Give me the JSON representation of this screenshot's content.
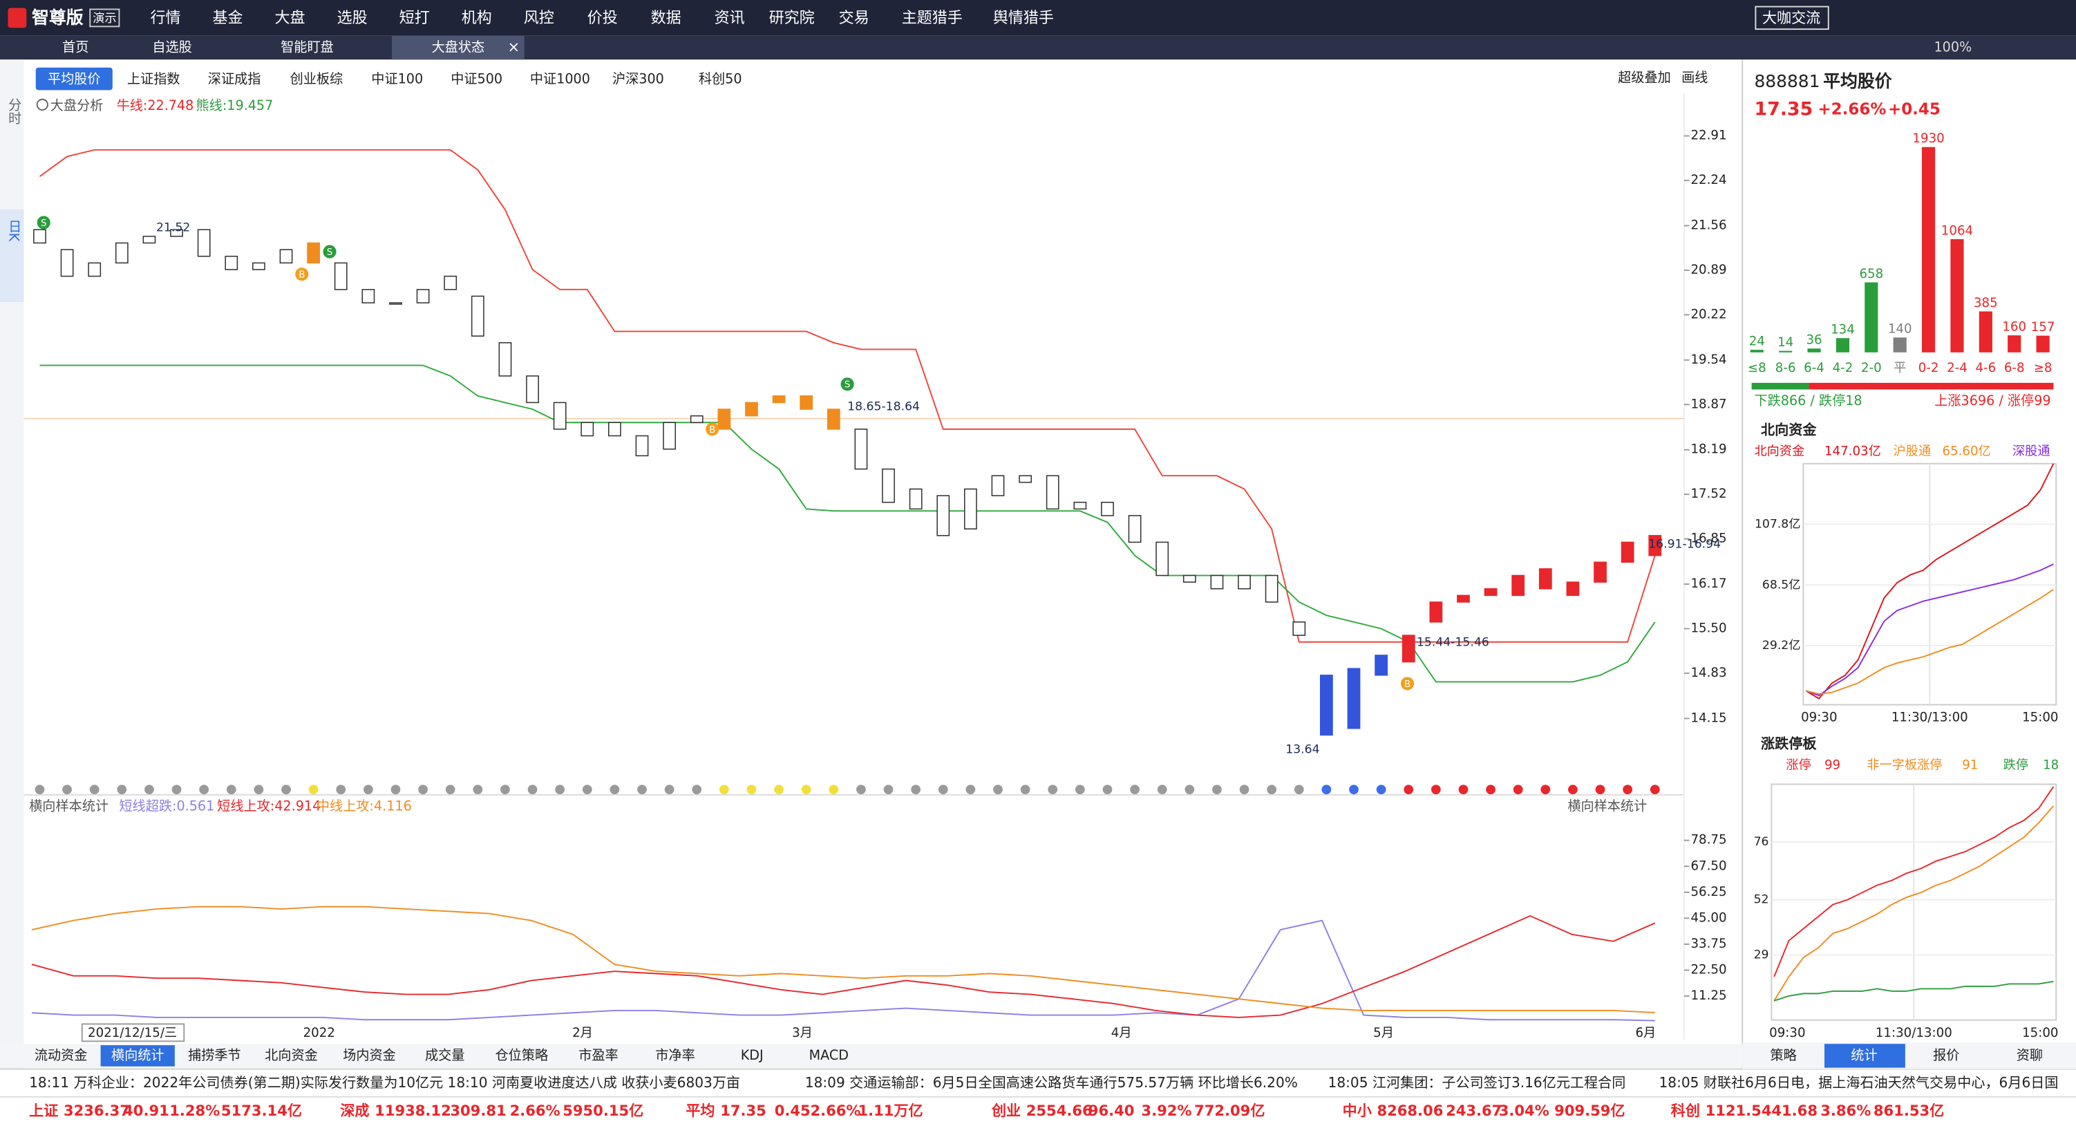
{
  "window": {
    "brand": "智尊版",
    "badge": "演示",
    "chat": "大咖交流",
    "zoom": "100%"
  },
  "top_menu": [
    "行情",
    "基金",
    "大盘",
    "选股",
    "短打",
    "机构",
    "风控",
    "价投",
    "数据",
    "资讯",
    "研究院",
    "交易",
    "主题猎手",
    "舆情猎手"
  ],
  "tabs": [
    "首页",
    "自选股",
    "智能盯盘",
    "大盘状态"
  ],
  "index_buttons": [
    "平均股价",
    "上证指数",
    "深证成指",
    "创业板综",
    "中证100",
    "中证500",
    "中证1000",
    "沪深300",
    "科创50"
  ],
  "toolbar_right": [
    "超级叠加",
    "画线"
  ],
  "side_tabs": [
    "分时",
    "日K"
  ],
  "main_chart": {
    "type": "candlestick",
    "legend": {
      "title": "大盘分析",
      "bull": "牛线:22.748",
      "bear": "熊线:19.457"
    },
    "ylim": [
      13.3,
      23.4
    ],
    "yticks": [
      22.91,
      22.24,
      21.56,
      20.89,
      20.22,
      19.54,
      18.87,
      18.19,
      17.52,
      16.85,
      16.17,
      {
        "value": 15.5,
        "label": "15.50"
      },
      14.83,
      14.15
    ],
    "x_labels": [
      "2021/12/15/三",
      "2022",
      "2月",
      "3月",
      "4月",
      "5月",
      "6月"
    ],
    "annotations": [
      "21.52",
      "18.65-18.64",
      "13.64",
      "15.44-15.46",
      "16.91-16.94"
    ],
    "open": [
      21.5,
      21.2,
      20.8,
      21.0,
      21.3,
      21.4,
      21.5,
      21.1,
      20.9,
      21.0,
      21.0,
      21.0,
      20.6,
      20.4,
      20.4,
      20.8,
      20.5,
      19.8,
      19.3,
      18.9,
      18.4,
      18.6,
      18.4,
      18.2,
      18.7,
      18.5,
      18.7,
      18.9,
      19.0,
      18.8,
      18.5,
      17.9,
      17.3,
      17.5,
      17.0,
      17.5,
      17.7,
      17.8,
      17.3,
      17.4,
      17.2,
      16.8,
      16.3,
      16.3,
      16.1,
      16.3,
      15.6,
      14.8,
      14.0,
      14.8,
      15.0,
      15.6,
      15.9,
      16.1,
      16.0,
      16.4,
      16.0,
      16.2,
      16.5,
      16.6
    ],
    "close": [
      21.3,
      20.8,
      21.0,
      21.3,
      21.4,
      21.5,
      21.1,
      20.9,
      21.0,
      21.2,
      21.3,
      20.6,
      20.4,
      20.4,
      20.6,
      20.6,
      19.9,
      19.3,
      18.9,
      18.5,
      18.6,
      18.4,
      18.1,
      18.6,
      18.6,
      18.8,
      18.9,
      19.0,
      18.8,
      18.5,
      17.9,
      17.4,
      17.6,
      16.9,
      17.6,
      17.8,
      17.8,
      17.3,
      17.4,
      17.2,
      16.8,
      16.3,
      16.2,
      16.1,
      16.3,
      15.9,
      15.4,
      13.9,
      14.9,
      15.1,
      15.4,
      15.9,
      16.0,
      16.0,
      16.3,
      16.1,
      16.2,
      16.5,
      16.8,
      16.9
    ],
    "day_state": [
      "n",
      "n",
      "n",
      "n",
      "n",
      "n",
      "n",
      "n",
      "n",
      "n",
      "o",
      "n",
      "n",
      "n",
      "n",
      "n",
      "n",
      "n",
      "n",
      "n",
      "n",
      "n",
      "n",
      "n",
      "n",
      "o",
      "o",
      "o",
      "o",
      "o",
      "n",
      "n",
      "n",
      "n",
      "n",
      "n",
      "n",
      "n",
      "n",
      "n",
      "n",
      "n",
      "n",
      "n",
      "n",
      "n",
      "n",
      "b",
      "b",
      "b",
      "r",
      "r",
      "r",
      "r",
      "r",
      "r",
      "r",
      "r",
      "r",
      "r"
    ],
    "state_colors": {
      "n": {
        "candle": "#ffffff",
        "dot": "#9a9a9a"
      },
      "o": {
        "candle": "#f08c1e",
        "dot": "#f2e03a"
      },
      "b": {
        "candle": "#3355dd",
        "dot": "#3c6ee8"
      },
      "r": {
        "candle": "#e8262b",
        "dot": "#e8262b"
      }
    },
    "bull_line": {
      "color": "#f0433a",
      "values": [
        22.3,
        22.6,
        22.7,
        22.7,
        22.7,
        22.7,
        22.7,
        22.7,
        22.7,
        22.7,
        22.7,
        22.7,
        22.7,
        22.7,
        22.7,
        22.7,
        22.4,
        21.8,
        20.9,
        20.6,
        20.6,
        19.97,
        19.97,
        19.97,
        19.97,
        19.97,
        19.97,
        19.97,
        19.97,
        19.8,
        19.7,
        19.7,
        19.7,
        18.5,
        18.5,
        18.5,
        18.5,
        18.5,
        18.5,
        18.5,
        18.5,
        17.8,
        17.8,
        17.8,
        17.6,
        17.0,
        15.3,
        15.3,
        15.3,
        15.3,
        15.3,
        15.3,
        15.3,
        15.3,
        15.3,
        15.3,
        15.3,
        15.3,
        15.3,
        16.6
      ]
    },
    "bear_line": {
      "color": "#2eaa3a",
      "values": [
        19.46,
        19.46,
        19.46,
        19.46,
        19.46,
        19.46,
        19.46,
        19.46,
        19.46,
        19.46,
        19.46,
        19.46,
        19.46,
        19.46,
        19.46,
        19.3,
        19.0,
        18.9,
        18.8,
        18.6,
        18.6,
        18.6,
        18.6,
        18.6,
        18.6,
        18.6,
        18.2,
        17.9,
        17.3,
        17.27,
        17.27,
        17.27,
        17.27,
        17.27,
        17.27,
        17.27,
        17.27,
        17.27,
        17.27,
        17.1,
        16.6,
        16.3,
        16.3,
        16.3,
        16.3,
        16.3,
        15.9,
        15.7,
        15.6,
        15.5,
        15.3,
        14.7,
        14.7,
        14.7,
        14.7,
        14.7,
        14.7,
        14.8,
        15.0,
        15.6
      ]
    }
  },
  "lower_chart": {
    "type": "line",
    "title": "横向样本统计",
    "title_right": "横向样本统计",
    "ylim": [
      -2,
      87
    ],
    "yticks": [
      78.75,
      {
        "value": 67.5,
        "label": "67.50"
      },
      56.25,
      {
        "value": 45,
        "label": "45.00"
      },
      33.75,
      {
        "value": 22.5,
        "label": "22.50"
      },
      11.25
    ],
    "series": [
      {
        "name": "短线超跌:0.561",
        "color": "#8b7fe8",
        "values": [
          4,
          3,
          3,
          2,
          2,
          2,
          2,
          2,
          1,
          1,
          1,
          2,
          3,
          4,
          5,
          5,
          4,
          3,
          3,
          4,
          5,
          6,
          5,
          4,
          3,
          3,
          3,
          4,
          3,
          10,
          40,
          44,
          3,
          2,
          2,
          1,
          1,
          1,
          1,
          0.6
        ]
      },
      {
        "name": "短线上攻:42.914",
        "color": "#e8262b",
        "values": [
          25,
          20,
          20,
          19,
          19,
          18,
          17,
          15,
          13,
          12,
          12,
          14,
          18,
          20,
          22,
          21,
          20,
          17,
          14,
          12,
          15,
          18,
          16,
          13,
          12,
          10,
          8,
          5,
          3,
          2,
          3,
          8,
          15,
          22,
          30,
          38,
          46,
          38,
          35,
          42.9
        ]
      },
      {
        "name": "中线上攻:4.116",
        "color": "#f08c1e",
        "values": [
          40,
          44,
          47,
          49,
          50,
          50,
          49,
          50,
          50,
          49,
          48,
          47,
          44,
          38,
          25,
          22,
          21,
          20,
          21,
          20,
          19,
          20,
          20,
          21,
          20,
          18,
          16,
          14,
          12,
          10,
          8,
          6,
          5,
          5,
          5,
          5,
          5,
          5,
          5,
          4.1
        ]
      }
    ]
  },
  "bottom_tabs": [
    "流动资金",
    "横向统计",
    "捕捞季节",
    "北向资金",
    "场内资金",
    "成交量",
    "仓位策略",
    "市盈率",
    "市净率",
    "KDJ",
    "MACD"
  ],
  "quote": {
    "code": "888881",
    "name": "平均股价",
    "price": "17.35",
    "change_pct": "+2.66%",
    "change": "+0.45"
  },
  "distribution": {
    "type": "bar",
    "categories": [
      "≤8",
      "8-6",
      "6-4",
      "4-2",
      "2-0",
      "平",
      "0-2",
      "2-4",
      "4-6",
      "6-8",
      "≥8"
    ],
    "values": [
      24,
      14,
      36,
      134,
      658,
      140,
      1930,
      1064,
      385,
      160,
      157
    ],
    "colors": [
      "#2a9d3b",
      "#2a9d3b",
      "#2a9d3b",
      "#2a9d3b",
      "#2a9d3b",
      "#808080",
      "#e8262b",
      "#e8262b",
      "#e8262b",
      "#e8262b",
      "#e8262b"
    ],
    "down_label": "下跌866 / 跌停18",
    "up_label": "上涨3696 / 涨停99",
    "down": 866,
    "up": 3696
  },
  "north_chart": {
    "type": "line",
    "title": "北向资金",
    "legend": [
      "北向资金",
      "147.03亿",
      "沪股通",
      "65.60亿",
      "深股通"
    ],
    "ylim": [
      -9,
      147
    ],
    "yticks": [
      {
        "value": 107.8,
        "label": "107.8亿"
      },
      {
        "value": 68.5,
        "label": "68.5亿"
      },
      {
        "value": 29.2,
        "label": "29.2亿"
      }
    ],
    "x_labels": [
      "09:30",
      "11:30/13:00",
      "15:00"
    ],
    "series": [
      {
        "name": "北向资金",
        "color": "#d9141c",
        "values": [
          0,
          -5,
          5,
          10,
          20,
          40,
          60,
          70,
          75,
          78,
          85,
          90,
          95,
          100,
          105,
          110,
          115,
          120,
          130,
          147.03
        ]
      },
      {
        "name": "深股通",
        "color": "#8a2be2",
        "values": [
          0,
          -3,
          3,
          8,
          15,
          30,
          45,
          52,
          55,
          58,
          60,
          62,
          64,
          66,
          68,
          70,
          72,
          75,
          78,
          82
        ]
      },
      {
        "name": "沪股通",
        "color": "#f08c1e",
        "values": [
          0,
          -2,
          -1,
          2,
          5,
          10,
          15,
          18,
          20,
          22,
          25,
          28,
          30,
          35,
          40,
          45,
          50,
          55,
          60,
          65.6
        ]
      }
    ]
  },
  "limit_chart": {
    "type": "line",
    "title": "涨跌停板",
    "legend": [
      "涨停",
      "99",
      "非一字板涨停",
      "91",
      "跌停",
      "18"
    ],
    "ylim": [
      2,
      100
    ],
    "yticks": [
      76,
      52,
      29
    ],
    "x_labels": [
      "09:30",
      "11:30/13:00",
      "15:00"
    ],
    "series": [
      {
        "name": "涨停",
        "color": "#e8262b",
        "values": [
          20,
          35,
          40,
          45,
          50,
          52,
          55,
          58,
          60,
          63,
          65,
          68,
          70,
          72,
          75,
          78,
          82,
          85,
          90,
          99
        ]
      },
      {
        "name": "非一字板涨停",
        "color": "#f08c1e",
        "values": [
          10,
          20,
          28,
          32,
          38,
          40,
          43,
          46,
          50,
          53,
          55,
          58,
          60,
          63,
          66,
          70,
          74,
          78,
          84,
          91
        ]
      },
      {
        "name": "跌停",
        "color": "#2a9d3b",
        "values": [
          10,
          12,
          13,
          13,
          14,
          14,
          14,
          15,
          14,
          14,
          15,
          15,
          15,
          16,
          16,
          16,
          17,
          17,
          17,
          18
        ]
      }
    ]
  },
  "right_tabs": [
    "策略",
    "统计",
    "报价",
    "资聊"
  ],
  "news": [
    "18:11 万科企业：2022年公司债券(第二期)实际发行数量为10亿元",
    "18:10 河南夏收进度达八成 收获小麦6803万亩",
    "18:09 交通运输部：6月5日全国高速公路货车通行575.57万辆 环比增长6.20%",
    "18:05 江河集团：子公司签订3.16亿元工程合同",
    "18:05 财联社6月6日电，据上海石油天然气交易中心，6月6日国"
  ],
  "status_bar": [
    {
      "name": "上证",
      "values": [
        "3236.37",
        "40.91",
        "1.28%",
        "5173.14亿"
      ]
    },
    {
      "name": "深成",
      "values": [
        "11938.12",
        "309.81",
        "2.66%",
        "5950.15亿"
      ]
    },
    {
      "name": "平均",
      "values": [
        "17.35",
        "0.45",
        "2.66%",
        "1.11万亿"
      ]
    },
    {
      "name": "创业",
      "values": [
        "2554.66",
        "96.40",
        "3.92%",
        "772.09亿"
      ]
    },
    {
      "name": "中小",
      "values": [
        "8268.06",
        "243.67",
        "3.04%",
        "909.59亿"
      ]
    },
    {
      "name": "科创",
      "values": [
        "1121.54",
        "41.68",
        "3.86%",
        "861.53亿"
      ]
    }
  ]
}
